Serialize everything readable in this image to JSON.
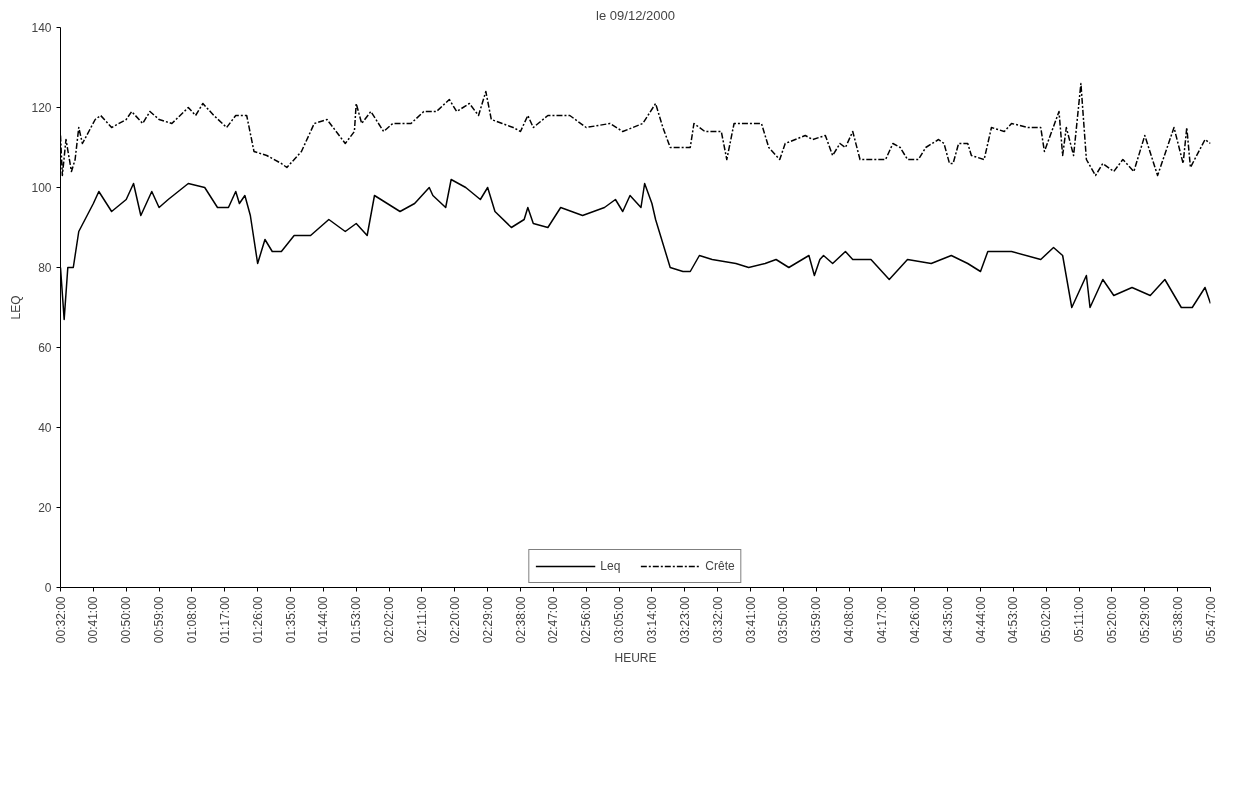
{
  "chart_data": {
    "type": "line",
    "title": "le 09/12/2000",
    "xlabel": "HEURE",
    "ylabel": "LEQ",
    "xlim": [
      0.5333,
      5.7833
    ],
    "ylim": [
      0,
      140
    ],
    "yticks": [
      0,
      20,
      40,
      60,
      80,
      100,
      120,
      140
    ],
    "xticks": [
      {
        "value": 0.5333,
        "label": "00:32:00"
      },
      {
        "value": 0.6833,
        "label": "00:41:00"
      },
      {
        "value": 0.8333,
        "label": "00:50:00"
      },
      {
        "value": 0.9833,
        "label": "00:59:00"
      },
      {
        "value": 1.1333,
        "label": "01:08:00"
      },
      {
        "value": 1.2833,
        "label": "01:17:00"
      },
      {
        "value": 1.4333,
        "label": "01:26:00"
      },
      {
        "value": 1.5833,
        "label": "01:35:00"
      },
      {
        "value": 1.7333,
        "label": "01:44:00"
      },
      {
        "value": 1.8833,
        "label": "01:53:00"
      },
      {
        "value": 2.0333,
        "label": "02:02:00"
      },
      {
        "value": 2.1833,
        "label": "02:11:00"
      },
      {
        "value": 2.3333,
        "label": "02:20:00"
      },
      {
        "value": 2.4833,
        "label": "02:29:00"
      },
      {
        "value": 2.6333,
        "label": "02:38:00"
      },
      {
        "value": 2.7833,
        "label": "02:47:00"
      },
      {
        "value": 2.9333,
        "label": "02:56:00"
      },
      {
        "value": 3.0833,
        "label": "03:05:00"
      },
      {
        "value": 3.2333,
        "label": "03:14:00"
      },
      {
        "value": 3.3833,
        "label": "03:23:00"
      },
      {
        "value": 3.5333,
        "label": "03:32:00"
      },
      {
        "value": 3.6833,
        "label": "03:41:00"
      },
      {
        "value": 3.8333,
        "label": "03:50:00"
      },
      {
        "value": 3.9833,
        "label": "03:59:00"
      },
      {
        "value": 4.1333,
        "label": "04:08:00"
      },
      {
        "value": 4.2833,
        "label": "04:17:00"
      },
      {
        "value": 4.4333,
        "label": "04:26:00"
      },
      {
        "value": 4.5833,
        "label": "04:35:00"
      },
      {
        "value": 4.7333,
        "label": "04:44:00"
      },
      {
        "value": 4.8833,
        "label": "04:53:00"
      },
      {
        "value": 5.0333,
        "label": "05:02:00"
      },
      {
        "value": 5.1833,
        "label": "05:11:00"
      },
      {
        "value": 5.3333,
        "label": "05:20:00"
      },
      {
        "value": 5.4833,
        "label": "05:29:00"
      },
      {
        "value": 5.6333,
        "label": "05:38:00"
      },
      {
        "value": 5.7833,
        "label": "05:47:00"
      }
    ],
    "grid": false,
    "legend": "bottom",
    "marker": "none",
    "series": [
      {
        "name": "Leq",
        "color": "#000000",
        "line_style": "solid",
        "x": [
          0.5333,
          0.55,
          0.5667,
          0.5917,
          0.6167,
          0.6833,
          0.7083,
          0.7667,
          0.8333,
          0.8667,
          0.9,
          0.95,
          0.9833,
          1.025,
          1.1167,
          1.1917,
          1.25,
          1.3,
          1.3333,
          1.35,
          1.375,
          1.4,
          1.4333,
          1.4667,
          1.5,
          1.5417,
          1.6,
          1.675,
          1.7583,
          1.8333,
          1.8833,
          1.9333,
          1.9667,
          2.025,
          2.0833,
          2.15,
          2.2167,
          2.2333,
          2.2917,
          2.3167,
          2.3833,
          2.45,
          2.4833,
          2.5167,
          2.5917,
          2.65,
          2.6667,
          2.6917,
          2.7583,
          2.8167,
          2.9167,
          3.0167,
          3.0667,
          3.1,
          3.1333,
          3.1833,
          3.2,
          3.2333,
          3.25,
          3.3167,
          3.375,
          3.4083,
          3.45,
          3.5083,
          3.6167,
          3.675,
          3.75,
          3.8,
          3.8583,
          3.95,
          3.975,
          4.0,
          4.0167,
          4.0583,
          4.1167,
          4.15,
          4.2333,
          4.3167,
          4.4,
          4.5083,
          4.6,
          4.675,
          4.7333,
          4.7667,
          4.875,
          5.0083,
          5.0667,
          5.1083,
          5.15,
          5.2167,
          5.2333,
          5.2917,
          5.3417,
          5.425,
          5.5083,
          5.575,
          5.65,
          5.7,
          5.7583,
          5.7833
        ],
        "values": [
          80,
          67,
          80,
          80,
          89,
          96,
          99,
          94,
          97,
          101,
          93,
          99,
          95,
          97,
          101,
          100,
          95,
          95,
          99,
          96,
          98,
          93,
          81,
          87,
          84,
          84,
          88,
          88,
          92,
          89,
          91,
          88,
          98,
          96,
          94,
          96,
          100,
          98,
          95,
          102,
          100,
          97,
          100,
          94,
          90,
          92,
          95,
          91,
          90,
          95,
          93,
          95,
          97,
          94,
          98,
          95,
          101,
          96,
          92,
          80,
          79,
          79,
          83,
          82,
          81,
          80,
          81,
          82,
          80,
          83,
          78,
          82,
          83,
          81,
          84,
          82,
          82,
          77,
          82,
          81,
          83,
          81,
          79,
          84,
          84,
          82,
          85,
          83,
          70,
          78,
          70,
          77,
          73,
          75,
          73,
          77,
          70,
          70,
          75,
          71
        ]
      },
      {
        "name": "Crête",
        "color": "#000000",
        "line_style": "dashed",
        "x": [
          0.5333,
          0.5417,
          0.5583,
          0.5833,
          0.6,
          0.6167,
          0.6333,
          0.6917,
          0.7167,
          0.7667,
          0.8333,
          0.8583,
          0.9083,
          0.9417,
          0.9833,
          1.0417,
          1.1167,
          1.15,
          1.1833,
          1.2333,
          1.2917,
          1.3333,
          1.3833,
          1.4167,
          1.475,
          1.5417,
          1.5667,
          1.6333,
          1.6917,
          1.75,
          1.8333,
          1.875,
          1.8833,
          1.9083,
          1.95,
          2.0083,
          2.05,
          2.1333,
          2.1917,
          2.25,
          2.3083,
          2.3417,
          2.4,
          2.4417,
          2.475,
          2.5,
          2.55,
          2.6,
          2.6333,
          2.6667,
          2.6917,
          2.7583,
          2.8583,
          2.9333,
          3.0417,
          3.1,
          3.1917,
          3.25,
          3.2833,
          3.3167,
          3.4083,
          3.425,
          3.475,
          3.55,
          3.575,
          3.6083,
          3.7333,
          3.7667,
          3.8167,
          3.8417,
          3.9333,
          3.9667,
          4.025,
          4.0583,
          4.0917,
          4.1167,
          4.15,
          4.1833,
          4.3,
          4.3333,
          4.3667,
          4.4,
          4.45,
          4.4833,
          4.5417,
          4.5667,
          4.5917,
          4.6083,
          4.6333,
          4.675,
          4.6917,
          4.75,
          4.7833,
          4.8417,
          4.875,
          4.95,
          5.0083,
          5.025,
          5.0917,
          5.1083,
          5.125,
          5.1583,
          5.1917,
          5.2167,
          5.2583,
          5.2917,
          5.3417,
          5.3833,
          5.4333,
          5.4833,
          5.5417,
          5.6167,
          5.6583,
          5.675,
          5.6917,
          5.7583,
          5.7833
        ],
        "values": [
          113,
          103,
          112,
          104,
          107,
          115,
          111,
          117,
          118,
          115,
          117,
          119,
          116,
          119,
          117,
          116,
          120,
          118,
          121,
          118,
          115,
          118,
          118,
          109,
          108,
          106,
          105,
          109,
          116,
          117,
          111,
          114,
          121,
          116,
          119,
          114,
          116,
          116,
          119,
          119,
          122,
          119,
          121,
          118,
          124,
          117,
          116,
          115,
          114,
          118,
          115,
          118,
          118,
          115,
          116,
          114,
          116,
          121,
          115,
          110,
          110,
          116,
          114,
          114,
          107,
          116,
          116,
          110,
          107,
          111,
          113,
          112,
          113,
          108,
          111,
          110,
          114,
          107,
          107,
          111,
          110,
          107,
          107,
          110,
          112,
          111,
          106,
          106,
          111,
          111,
          108,
          107,
          115,
          114,
          116,
          115,
          115,
          109,
          119,
          108,
          115,
          108,
          126,
          107,
          103,
          106,
          104,
          107,
          104,
          113,
          103,
          115,
          106,
          115,
          105,
          112,
          111
        ]
      }
    ]
  }
}
